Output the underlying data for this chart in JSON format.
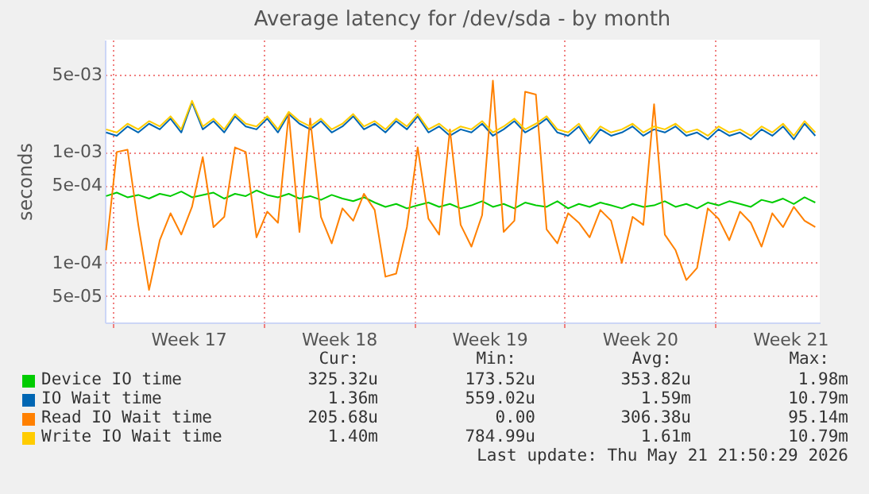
{
  "chart_data": {
    "type": "line",
    "title": "Average latency for /dev/sda - by month",
    "ylabel": "seconds",
    "log": "y",
    "grid": true,
    "legend": "bottom",
    "xlim": [
      "2026-04-19T14:40",
      "2026-05-22T21:00"
    ],
    "xticks": [
      {
        "value": "2026-04-20T00:00",
        "label": null
      },
      {
        "value": "2026-04-23T12:00",
        "label": "Week 17"
      },
      {
        "value": "2026-04-27T00:00",
        "label": null
      },
      {
        "value": "2026-04-30T12:00",
        "label": "Week 18"
      },
      {
        "value": "2026-05-04T00:00",
        "label": null
      },
      {
        "value": "2026-05-07T12:00",
        "label": "Week 19"
      },
      {
        "value": "2026-05-11T00:00",
        "label": null
      },
      {
        "value": "2026-05-14T12:00",
        "label": "Week 20"
      },
      {
        "value": "2026-05-18T00:00",
        "label": null
      },
      {
        "value": "2026-05-21T12:00",
        "label": "Week 21"
      }
    ],
    "ylim": [
      2.9e-05,
      0.0103
    ],
    "yticks": [
      {
        "value": 5e-05,
        "label": "5e-05"
      },
      {
        "value": 0.0001,
        "label": "1e-04"
      },
      {
        "value": 0.0005,
        "label": "5e-04"
      },
      {
        "value": 0.001,
        "label": "1e-03"
      },
      {
        "value": 0.005,
        "label": "5e-03"
      }
    ],
    "x": [
      "2026-04-19T16:00",
      "2026-04-20T04:00",
      "2026-04-20T16:00",
      "2026-04-21T04:00",
      "2026-04-21T16:00",
      "2026-04-22T04:00",
      "2026-04-22T16:00",
      "2026-04-23T04:00",
      "2026-04-23T16:00",
      "2026-04-24T04:00",
      "2026-04-24T16:00",
      "2026-04-25T04:00",
      "2026-04-25T16:00",
      "2026-04-26T04:00",
      "2026-04-26T16:00",
      "2026-04-27T04:00",
      "2026-04-27T16:00",
      "2026-04-28T04:00",
      "2026-04-28T16:00",
      "2026-04-29T04:00",
      "2026-04-29T16:00",
      "2026-04-30T04:00",
      "2026-04-30T16:00",
      "2026-05-01T04:00",
      "2026-05-01T16:00",
      "2026-05-02T04:00",
      "2026-05-02T16:00",
      "2026-05-03T04:00",
      "2026-05-03T16:00",
      "2026-05-04T04:00",
      "2026-05-04T16:00",
      "2026-05-05T04:00",
      "2026-05-05T16:00",
      "2026-05-06T04:00",
      "2026-05-06T16:00",
      "2026-05-07T04:00",
      "2026-05-07T16:00",
      "2026-05-08T04:00",
      "2026-05-08T16:00",
      "2026-05-09T04:00",
      "2026-05-09T16:00",
      "2026-05-10T04:00",
      "2026-05-10T16:00",
      "2026-05-11T04:00",
      "2026-05-11T16:00",
      "2026-05-12T04:00",
      "2026-05-12T16:00",
      "2026-05-13T04:00",
      "2026-05-13T16:00",
      "2026-05-14T04:00",
      "2026-05-14T16:00",
      "2026-05-15T04:00",
      "2026-05-15T16:00",
      "2026-05-16T04:00",
      "2026-05-16T16:00",
      "2026-05-17T04:00",
      "2026-05-17T16:00",
      "2026-05-18T04:00",
      "2026-05-18T16:00",
      "2026-05-19T04:00",
      "2026-05-19T16:00",
      "2026-05-20T04:00",
      "2026-05-20T16:00",
      "2026-05-21T04:00",
      "2026-05-21T16:00",
      "2026-05-22T04:00",
      "2026-05-22T16:00"
    ],
    "series": [
      {
        "name": "Device IO time",
        "color": "#00cc00",
        "values": [
          0.0004,
          0.00043,
          0.00039,
          0.00041,
          0.00038,
          0.00042,
          0.0004,
          0.00044,
          0.00039,
          0.00041,
          0.00043,
          0.00038,
          0.00042,
          0.0004,
          0.00045,
          0.00041,
          0.00039,
          0.00042,
          0.00038,
          0.0004,
          0.00037,
          0.00041,
          0.00038,
          0.00036,
          0.00039,
          0.00035,
          0.00032,
          0.00034,
          0.00031,
          0.00033,
          0.00035,
          0.00032,
          0.00034,
          0.00031,
          0.00033,
          0.00036,
          0.00032,
          0.00034,
          0.00031,
          0.00035,
          0.00033,
          0.00032,
          0.00036,
          0.00031,
          0.00034,
          0.00032,
          0.00035,
          0.00033,
          0.00031,
          0.00034,
          0.00032,
          0.00033,
          0.00036,
          0.00032,
          0.00034,
          0.00031,
          0.00035,
          0.00033,
          0.00036,
          0.00034,
          0.00032,
          0.00037,
          0.00035,
          0.00038,
          0.00034,
          0.00039,
          0.00035
        ]
      },
      {
        "name": "IO Wait time",
        "color": "#0066b3",
        "values": [
          0.0015,
          0.0014,
          0.0017,
          0.0015,
          0.0018,
          0.0016,
          0.002,
          0.0015,
          0.0028,
          0.0016,
          0.0019,
          0.0015,
          0.0021,
          0.0017,
          0.0016,
          0.002,
          0.0015,
          0.0022,
          0.0018,
          0.0016,
          0.0019,
          0.0015,
          0.0017,
          0.0021,
          0.0016,
          0.0018,
          0.0015,
          0.0019,
          0.0016,
          0.0021,
          0.0015,
          0.0017,
          0.0014,
          0.0016,
          0.0015,
          0.0018,
          0.0014,
          0.0016,
          0.0019,
          0.0015,
          0.0017,
          0.002,
          0.0015,
          0.0014,
          0.0017,
          0.0012,
          0.0016,
          0.0014,
          0.0015,
          0.0017,
          0.0014,
          0.0016,
          0.0015,
          0.0017,
          0.0014,
          0.0015,
          0.0013,
          0.0016,
          0.0014,
          0.0015,
          0.0013,
          0.0016,
          0.0014,
          0.0017,
          0.0013,
          0.0018,
          0.0014
        ]
      },
      {
        "name": "Read IO Wait time",
        "color": "#ff8000",
        "values": [
          0.00013,
          0.001,
          0.00105,
          0.00022,
          5.7e-05,
          0.00016,
          0.00028,
          0.00018,
          0.00032,
          0.0009,
          0.00021,
          0.00026,
          0.0011,
          0.001,
          0.00017,
          0.00029,
          0.00023,
          0.0022,
          0.00019,
          0.002,
          0.00026,
          0.00015,
          0.00031,
          0.00024,
          0.00042,
          0.0003,
          7.5e-05,
          8e-05,
          0.00021,
          0.0011,
          0.00025,
          0.00018,
          0.0016,
          0.00022,
          0.00014,
          0.00027,
          0.0044,
          0.00019,
          0.00024,
          0.0035,
          0.0033,
          0.0002,
          0.00015,
          0.00028,
          0.00023,
          0.00017,
          0.0003,
          0.00024,
          0.0001,
          0.00026,
          0.00022,
          0.0027,
          0.00018,
          0.00013,
          7e-05,
          9e-05,
          0.00031,
          0.00025,
          0.00016,
          0.00029,
          0.00023,
          0.00014,
          0.00028,
          0.00021,
          0.00032,
          0.00024,
          0.00021
        ]
      },
      {
        "name": "Write IO Wait time",
        "color": "#ffcc00",
        "values": [
          0.0016,
          0.0015,
          0.0018,
          0.0016,
          0.0019,
          0.0017,
          0.0021,
          0.0016,
          0.0029,
          0.0017,
          0.002,
          0.0016,
          0.0022,
          0.0018,
          0.0017,
          0.0021,
          0.0016,
          0.0023,
          0.0019,
          0.0017,
          0.002,
          0.0016,
          0.0018,
          0.0022,
          0.0017,
          0.0019,
          0.0016,
          0.002,
          0.0017,
          0.0022,
          0.0016,
          0.0018,
          0.0015,
          0.0017,
          0.0016,
          0.0019,
          0.0015,
          0.0017,
          0.002,
          0.0016,
          0.0018,
          0.0021,
          0.0016,
          0.0015,
          0.0018,
          0.0013,
          0.0017,
          0.0015,
          0.0016,
          0.0018,
          0.0015,
          0.0017,
          0.0016,
          0.0018,
          0.0015,
          0.0016,
          0.0014,
          0.0017,
          0.0015,
          0.0016,
          0.0014,
          0.0017,
          0.0015,
          0.0018,
          0.0014,
          0.0019,
          0.0015
        ]
      }
    ],
    "annotations": [
      "Cur:",
      "Min:",
      "Avg:",
      "Max:",
      "325.32u",
      "173.52u",
      "353.82u",
      "1.98m",
      "1.36m",
      "559.02u",
      "1.59m",
      "10.79m",
      "205.68u",
      "0.00",
      "306.38u",
      "95.14m",
      "1.40m",
      "784.99u",
      "1.61m",
      "10.79m",
      "Last update: Thu May 21 21:50:29 2026"
    ]
  }
}
